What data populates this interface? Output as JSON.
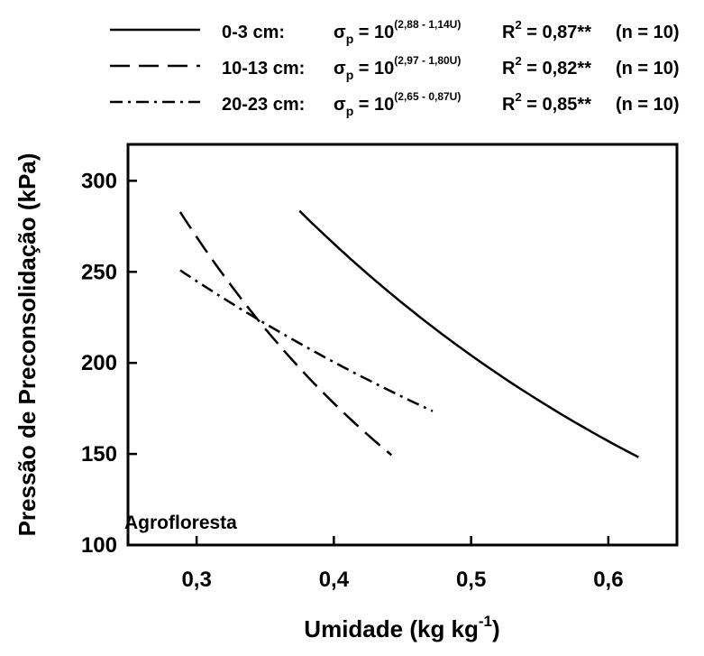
{
  "chart_data": {
    "type": "line",
    "xlabel": "Umidade (kg kg",
    "xlabel_sup": "-1",
    "xlabel_end": ")",
    "ylabel": "Pressão de Preconsolidação (kPa)",
    "xlim": [
      0.25,
      0.65
    ],
    "ylim": [
      100,
      320
    ],
    "x_ticks": [
      0.3,
      0.4,
      0.5,
      0.6
    ],
    "x_tick_labels": [
      "0,3",
      "0,4",
      "0,5",
      "0,6"
    ],
    "y_ticks": [
      100,
      150,
      200,
      250,
      300
    ],
    "y_tick_labels": [
      "100",
      "150",
      "200",
      "250",
      "300"
    ],
    "grid": false,
    "legend_position": "top",
    "annotation": "Agrofloresta",
    "series": [
      {
        "name": "0-3 cm:",
        "dash": "solid",
        "a": 2.88,
        "b": 1.14,
        "x_range": [
          0.375,
          0.622
        ],
        "eq": {
          "pre": "σ",
          "sub": "p",
          "mid": " = 10",
          "sup": "(2,88 - 1,14U)"
        },
        "r2": {
          "pre": "R",
          "sup": "2",
          "post": " = 0,87**"
        },
        "n": "(n = 10)"
      },
      {
        "name": "10-13 cm:",
        "dash": "dashed",
        "a": 2.97,
        "b": 1.8,
        "x_range": [
          0.288,
          0.442
        ],
        "eq": {
          "pre": "σ",
          "sub": "p",
          "mid": " = 10",
          "sup": "(2,97 - 1,80U)"
        },
        "r2": {
          "pre": "R",
          "sup": "2",
          "post": " = 0,82**"
        },
        "n": "(n = 10)"
      },
      {
        "name": "20-23 cm:",
        "dash": "dashdot",
        "a": 2.65,
        "b": 0.87,
        "x_range": [
          0.288,
          0.472
        ],
        "eq": {
          "pre": "σ",
          "sub": "p",
          "mid": " = 10",
          "sup": "(2,65 - 0,87U)"
        },
        "r2": {
          "pre": "R",
          "sup": "2",
          "post": " = 0,85**"
        },
        "n": "(n = 10)"
      }
    ]
  }
}
